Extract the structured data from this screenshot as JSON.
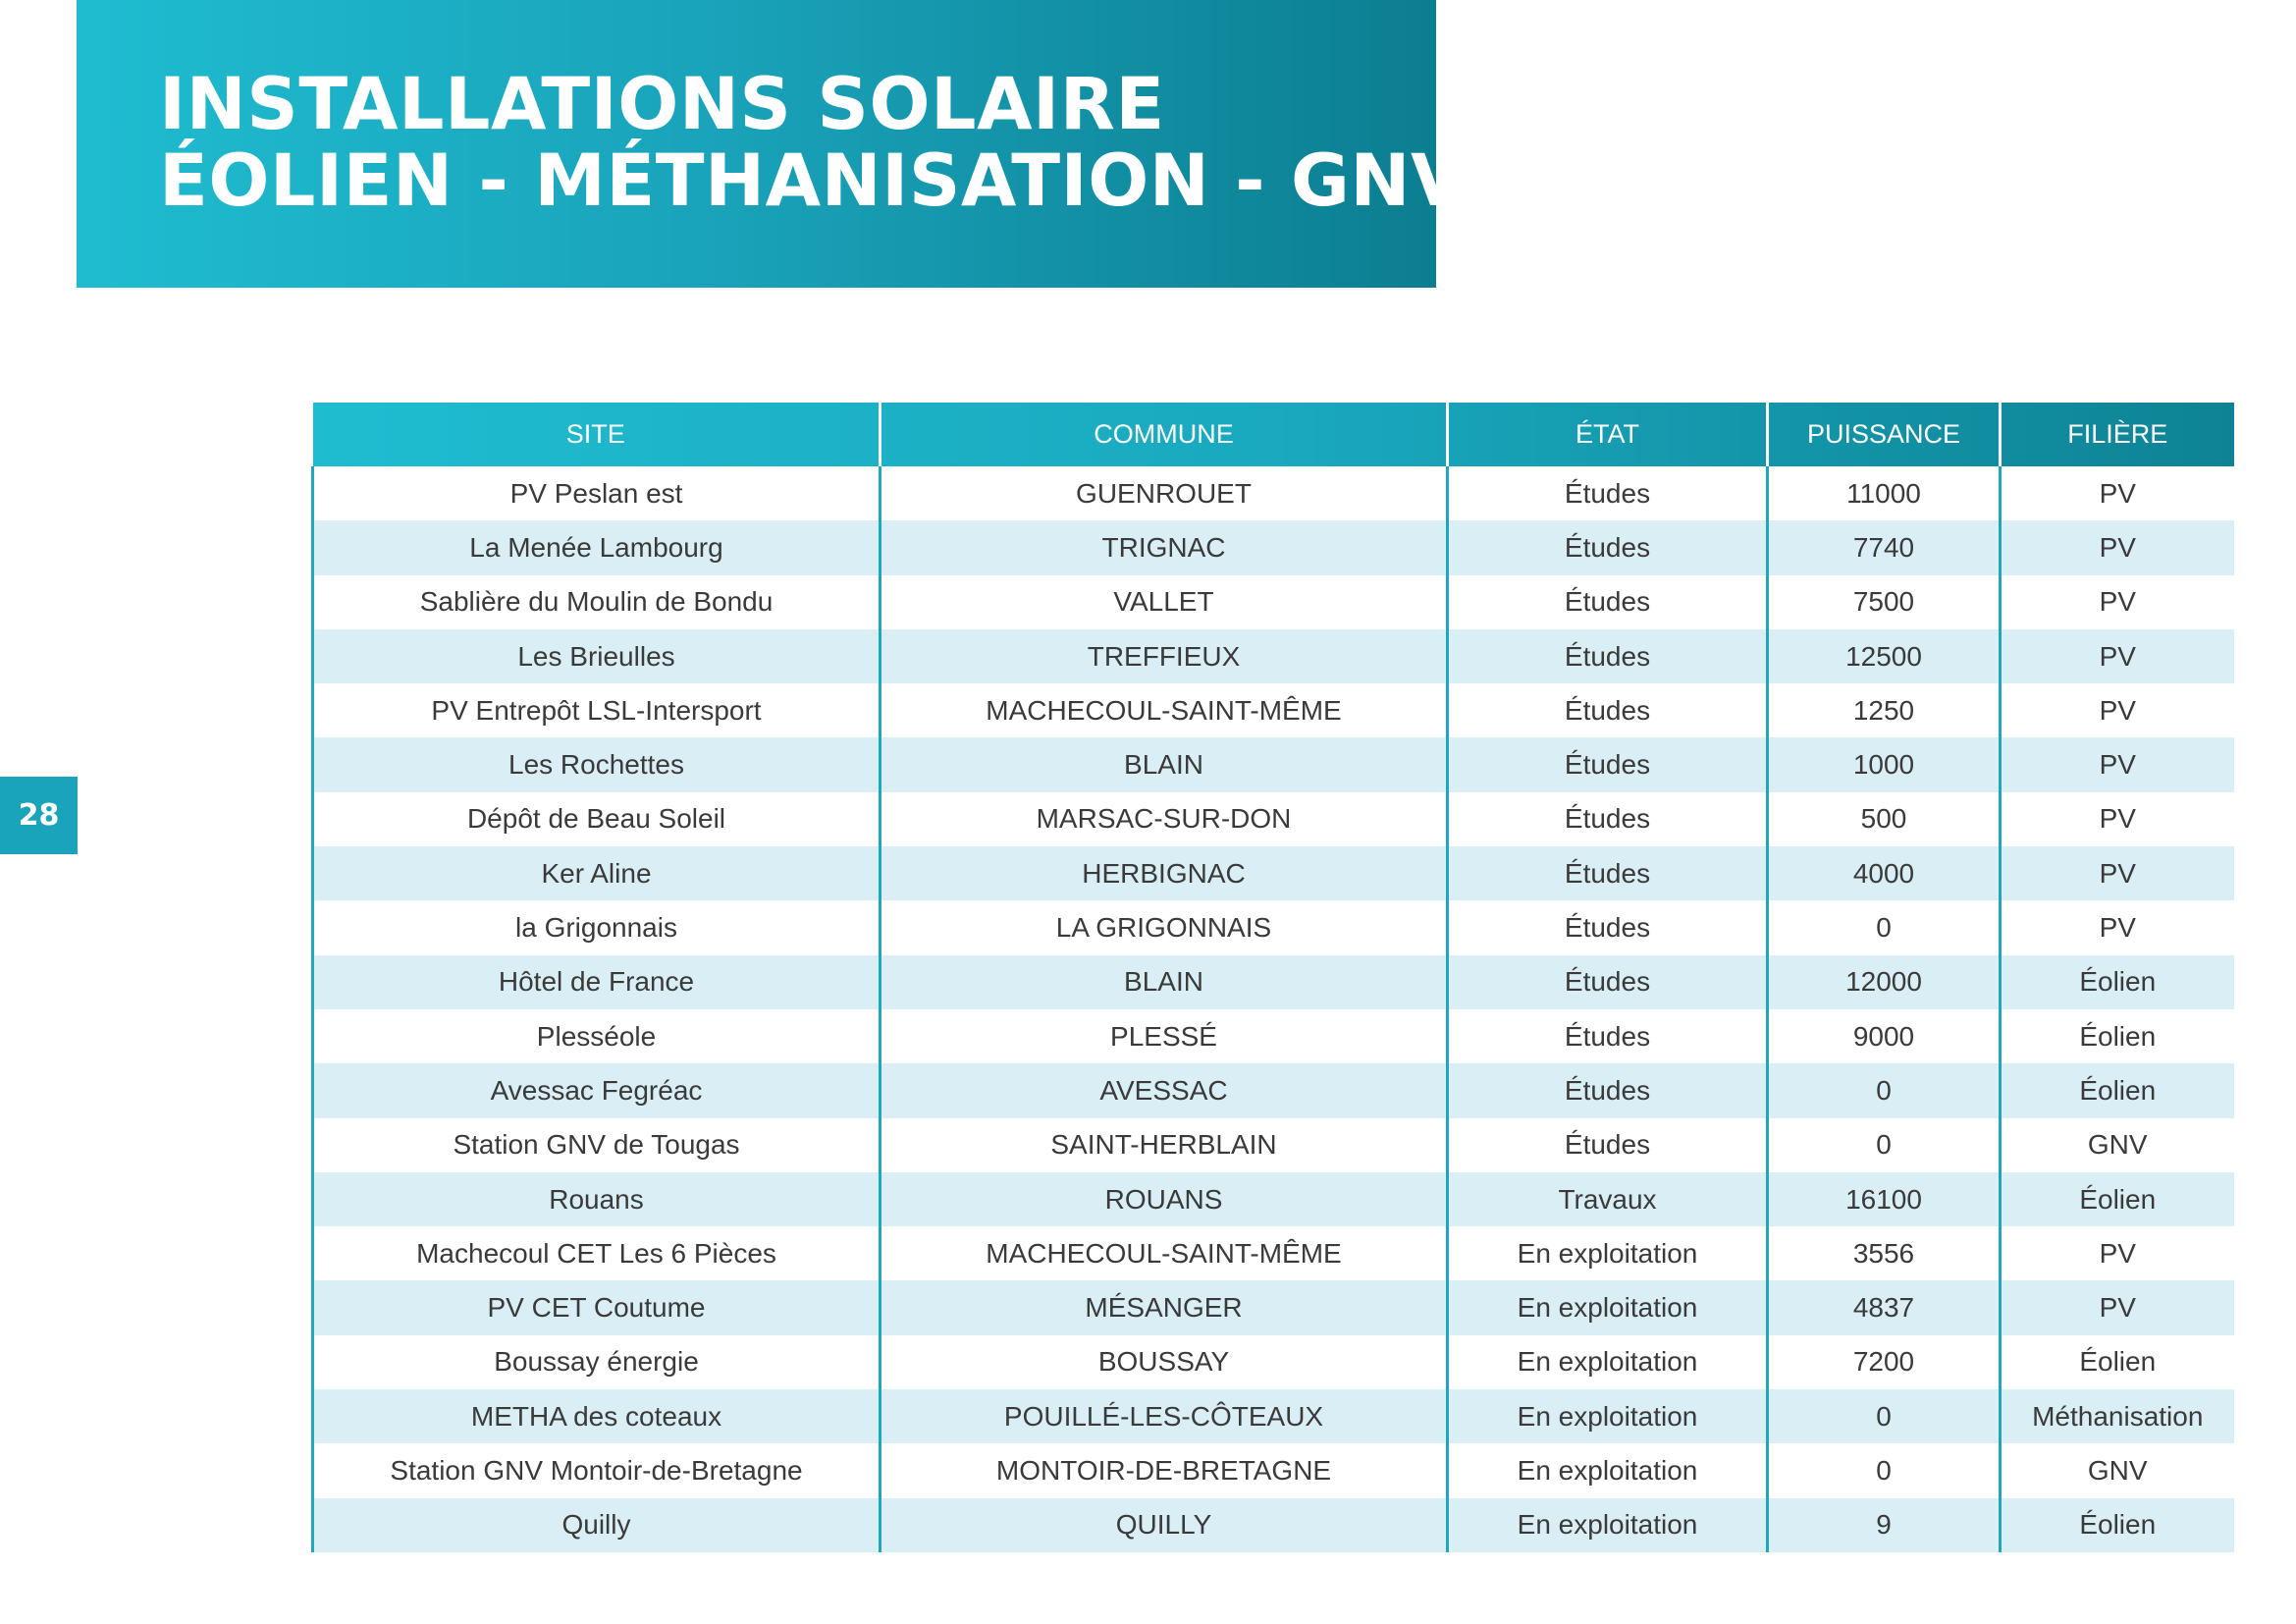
{
  "header": {
    "title_line1": "INSTALLATIONS SOLAIRE",
    "title_line2": "ÉOLIEN - MÉTHANISATION - GNV"
  },
  "page_number": "28",
  "colors": {
    "accent": "#1aa4bb",
    "accent_light": "#1fbcd0",
    "accent_dark": "#0c7e91",
    "row_stripe": "#d9eff5"
  },
  "table": {
    "columns": [
      "SITE",
      "COMMUNE",
      "ÉTAT",
      "PUISSANCE",
      "FILIÈRE"
    ],
    "rows": [
      [
        "PV Peslan est",
        "GUENROUET",
        "Études",
        "11000",
        "PV"
      ],
      [
        "La Menée Lambourg",
        "TRIGNAC",
        "Études",
        "7740",
        "PV"
      ],
      [
        "Sablière du Moulin de Bondu",
        "VALLET",
        "Études",
        "7500",
        "PV"
      ],
      [
        "Les Brieulles",
        "TREFFIEUX",
        "Études",
        "12500",
        "PV"
      ],
      [
        "PV Entrepôt LSL-Intersport",
        "MACHECOUL-SAINT-MÊME",
        "Études",
        "1250",
        "PV"
      ],
      [
        "Les Rochettes",
        "BLAIN",
        "Études",
        "1000",
        "PV"
      ],
      [
        "Dépôt de Beau Soleil",
        "MARSAC-SUR-DON",
        "Études",
        "500",
        "PV"
      ],
      [
        "Ker Aline",
        "HERBIGNAC",
        "Études",
        "4000",
        "PV"
      ],
      [
        "la Grigonnais",
        "LA GRIGONNAIS",
        "Études",
        "0",
        "PV"
      ],
      [
        "Hôtel de France",
        "BLAIN",
        "Études",
        "12000",
        "Éolien"
      ],
      [
        "Plesséole",
        "PLESSÉ",
        "Études",
        "9000",
        "Éolien"
      ],
      [
        "Avessac Fegréac",
        "AVESSAC",
        "Études",
        "0",
        "Éolien"
      ],
      [
        "Station GNV de Tougas",
        "SAINT-HERBLAIN",
        "Études",
        "0",
        "GNV"
      ],
      [
        "Rouans",
        "ROUANS",
        "Travaux",
        "16100",
        "Éolien"
      ],
      [
        "Machecoul CET Les 6 Pièces",
        "MACHECOUL-SAINT-MÊME",
        "En exploitation",
        "3556",
        "PV"
      ],
      [
        "PV CET Coutume",
        "MÉSANGER",
        "En exploitation",
        "4837",
        "PV"
      ],
      [
        "Boussay énergie",
        "BOUSSAY",
        "En exploitation",
        "7200",
        "Éolien"
      ],
      [
        "METHA des coteaux",
        "POUILLÉ-LES-CÔTEAUX",
        "En exploitation",
        "0",
        "Méthanisation"
      ],
      [
        "Station GNV Montoir-de-Bretagne",
        "MONTOIR-DE-BRETAGNE",
        "En exploitation",
        "0",
        "GNV"
      ],
      [
        "Quilly",
        "QUILLY",
        "En exploitation",
        "9",
        "Éolien"
      ]
    ]
  }
}
